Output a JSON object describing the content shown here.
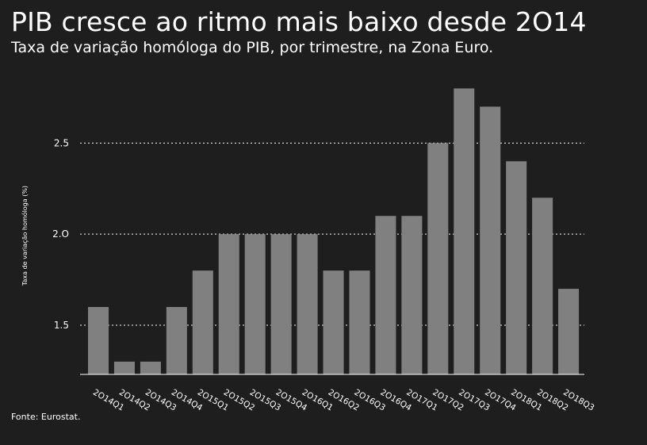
{
  "title": "PIB cresce ao ritmo mais baixo desde 2O14",
  "subtitle": "Taxa de variação homóloga do PIB, por trimestre, na Zona Euro.",
  "source": "Fonte: Eurostat.",
  "colors": {
    "background": "#1e1e1e",
    "bar": "#808080",
    "text": "#ffffff",
    "grid": "#ffffff"
  },
  "chart_data": {
    "type": "bar",
    "title": "PIB cresce ao ritmo mais baixo desde 2O14",
    "subtitle": "Taxa de variação homóloga do PIB, por trimestre, na Zona Euro.",
    "xlabel": "",
    "ylabel": "Taxa de variação homóloga (%)",
    "categories": [
      "2O14Q1",
      "2O14Q2",
      "2O14Q3",
      "2O14Q4",
      "2O15Q1",
      "2O15Q2",
      "2O15Q3",
      "2O15Q4",
      "2O16Q1",
      "2O16Q2",
      "2O16Q3",
      "2O16Q4",
      "2O17Q1",
      "2O17Q2",
      "2O17Q3",
      "2O17Q4",
      "2O18Q1",
      "2O18Q2",
      "2O18Q3"
    ],
    "values": [
      1.6,
      1.3,
      1.3,
      1.6,
      1.8,
      2.0,
      2.0,
      2.0,
      2.0,
      1.8,
      1.8,
      2.1,
      2.1,
      2.5,
      2.8,
      2.7,
      2.4,
      2.2,
      1.7
    ],
    "ylim": [
      1.23,
      2.85
    ],
    "yticks": [
      1.5,
      2.0,
      2.5
    ],
    "ytick_labels": [
      "1.5",
      "2.O",
      "2.5"
    ],
    "grid": "horizontal dotted",
    "legend": "none"
  }
}
